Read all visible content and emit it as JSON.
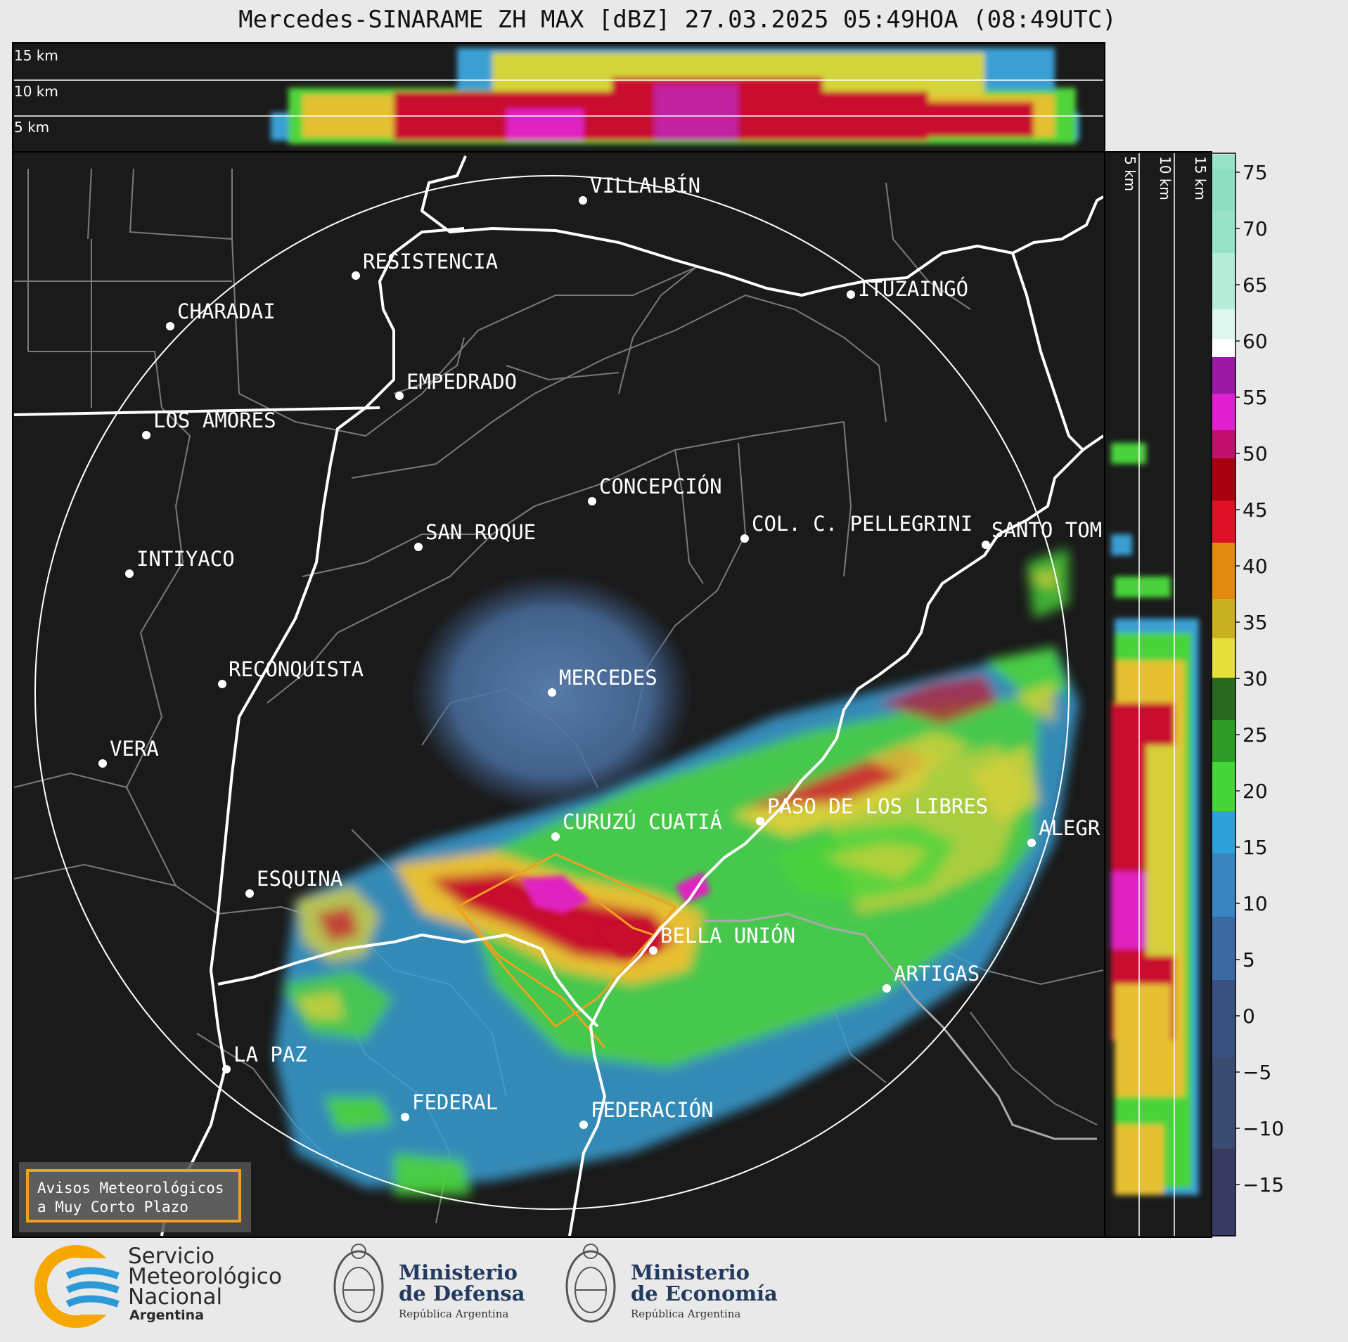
{
  "title": "Mercedes-SINARAME ZH MAX [dBZ] 27.03.2025 05:49HOA (08:49UTC)",
  "map": {
    "cities": [
      {
        "id": "villalbin",
        "name": "VILLALBÍN"
      },
      {
        "id": "resistencia",
        "name": "RESISTENCIA"
      },
      {
        "id": "charadai",
        "name": "CHARADAI"
      },
      {
        "id": "ituzaingo",
        "name": "ITUZAINGÓ"
      },
      {
        "id": "empedrado",
        "name": "EMPEDRADO"
      },
      {
        "id": "los-amores",
        "name": "LOS AMORES"
      },
      {
        "id": "concepcion",
        "name": "CONCEPCIÓN"
      },
      {
        "id": "san-roque",
        "name": "SAN ROQUE"
      },
      {
        "id": "col-pellegrini",
        "name": "COL. C. PELLEGRINI"
      },
      {
        "id": "santo-tome",
        "name": "SANTO TOM"
      },
      {
        "id": "intiyaco",
        "name": "INTIYACO"
      },
      {
        "id": "mercedes",
        "name": "MERCEDES"
      },
      {
        "id": "reconquista",
        "name": "RECONQUISTA"
      },
      {
        "id": "vera",
        "name": "VERA"
      },
      {
        "id": "curuzu-cuatia",
        "name": "CURUZÚ CUATIÁ"
      },
      {
        "id": "paso-de-los-libres",
        "name": "PASO DE LOS LIBRES"
      },
      {
        "id": "alegrete",
        "name": "ALEGR"
      },
      {
        "id": "esquina",
        "name": "ESQUINA"
      },
      {
        "id": "bella-union",
        "name": "BELLA UNIÓN"
      },
      {
        "id": "artigas",
        "name": "ARTIGAS"
      },
      {
        "id": "la-paz",
        "name": "LA PAZ"
      },
      {
        "id": "federal",
        "name": "FEDERAL"
      },
      {
        "id": "federacion",
        "name": "FEDERACIÓN"
      }
    ],
    "background_color": "#1a1a1a",
    "range_ring_color": "#ffffff"
  },
  "top_profile": {
    "altitude_labels": [
      "15 km",
      "10 km",
      "5 km"
    ]
  },
  "side_profile": {
    "altitude_labels": [
      "5 km",
      "10 km",
      "15 km"
    ]
  },
  "colorbar": {
    "ticks": [
      "75",
      "70",
      "65",
      "60",
      "55",
      "50",
      "45",
      "40",
      "35",
      "30",
      "25",
      "20",
      "15",
      "10",
      "5",
      "0",
      "−5",
      "−10",
      "−15"
    ],
    "unit": "dBZ"
  },
  "notice": {
    "line1": "Avisos Meteorológicos",
    "line2": "a Muy Corto Plazo"
  },
  "logos": {
    "smn": {
      "line1": "Servicio",
      "line2": "Meteorológico",
      "line3": "Nacional",
      "line4": "Argentina"
    },
    "defensa": {
      "line1": "Ministerio",
      "line2": "de Defensa",
      "line3": "República Argentina"
    },
    "economia": {
      "line1": "Ministerio",
      "line2": "de Economía",
      "line3": "República Argentina"
    }
  }
}
